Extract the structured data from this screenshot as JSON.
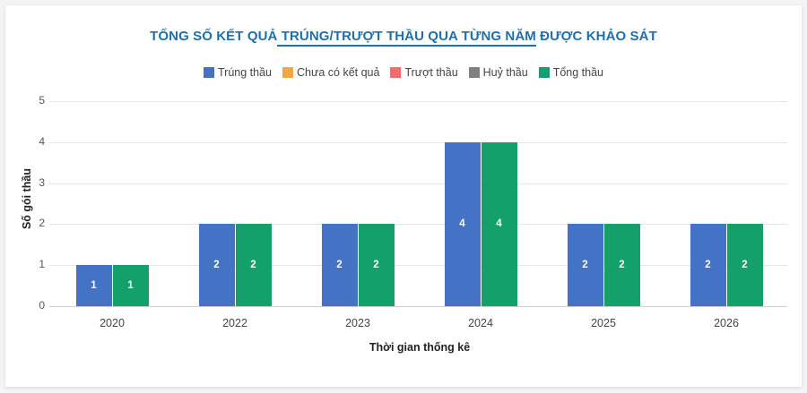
{
  "title": {
    "prefix": "TỔNG SỐ KẾT QUẢ",
    "underlined": " TRÚNG/TRƯỢT THẦU QUA TỪNG NĂM",
    "suffix": " ĐƯỢC KHẢO SÁT"
  },
  "legend": [
    {
      "label": "Trúng thầu",
      "color": "#4472c4"
    },
    {
      "label": "Chưa có kết quả",
      "color": "#f6a545"
    },
    {
      "label": "Trượt thầu",
      "color": "#f26c6c"
    },
    {
      "label": "Huỷ thầu",
      "color": "#808080"
    },
    {
      "label": "Tổng thầu",
      "color": "#14a06a"
    }
  ],
  "chart_data": {
    "type": "bar",
    "title": "TỔNG SỐ KẾT QUẢ TRÚNG/TRƯỢT THẦU QUA TỪNG NĂM ĐƯỢC KHẢO SÁT",
    "xlabel": "Thời gian thống kê",
    "ylabel": "Số gói thầu",
    "ylim": [
      0,
      5
    ],
    "yticks": [
      "0",
      "1",
      "2",
      "3",
      "4",
      "5"
    ],
    "categories": [
      "2020",
      "2022",
      "2023",
      "2024",
      "2025",
      "2026"
    ],
    "series": [
      {
        "name": "Trúng thầu",
        "color": "#4472c4",
        "values": [
          1,
          2,
          2,
          4,
          2,
          2
        ]
      },
      {
        "name": "Chưa có kết quả",
        "color": "#f6a545",
        "values": [
          0,
          0,
          0,
          0,
          0,
          0
        ]
      },
      {
        "name": "Trượt thầu",
        "color": "#f26c6c",
        "values": [
          0,
          0,
          0,
          0,
          0,
          0
        ]
      },
      {
        "name": "Huỷ thầu",
        "color": "#808080",
        "values": [
          0,
          0,
          0,
          0,
          0,
          0
        ]
      },
      {
        "name": "Tổng thầu",
        "color": "#14a06a",
        "values": [
          1,
          2,
          2,
          4,
          2,
          2
        ]
      }
    ],
    "grid": true,
    "legend_position": "top",
    "data_labels": true
  }
}
